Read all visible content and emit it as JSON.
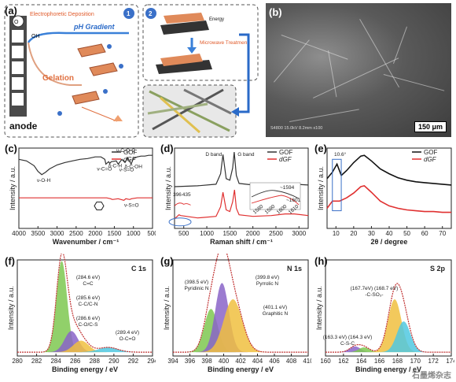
{
  "panel_labels": {
    "a": "(a)",
    "b": "(b)",
    "c": "(c)",
    "d": "(d)",
    "e": "(e)",
    "f": "(f)",
    "g": "(g)",
    "h": "(h)"
  },
  "panel_a": {
    "anode": "anode",
    "step1": "Electrophoretic Deposition",
    "step1_num": "1",
    "step2_num": "2",
    "oh": "OH",
    "o2": "O",
    "ph_gradient": "pH Gradient",
    "gelation": "Gelation",
    "energy": "Energy",
    "microwave": "Microwave Treatment"
  },
  "panel_b": {
    "scale_bar": "150 μm",
    "info": "S4800 15.0kV 8.2mm x100"
  },
  "watermark": "石墨烯杂志",
  "chart_data": [
    {
      "panel": "c",
      "type": "line",
      "xlabel": "Wavenumber / cm⁻¹",
      "ylabel": "Intensity / a.u.",
      "xlim": [
        4000,
        500
      ],
      "xticks": [
        4000,
        3500,
        3000,
        2500,
        2000,
        1500,
        1000,
        500
      ],
      "series": [
        {
          "name": "GOF",
          "color": "#333333",
          "x": [
            4000,
            3800,
            3600,
            3500,
            3400,
            3300,
            3200,
            3000,
            2800,
            2600,
            2400,
            2200,
            2000,
            1850,
            1750,
            1720,
            1650,
            1620,
            1580,
            1450,
            1400,
            1300,
            1220,
            1150,
            1060,
            1000,
            900,
            800,
            700,
            600,
            500
          ],
          "y": [
            0.86,
            0.84,
            0.78,
            0.71,
            0.67,
            0.7,
            0.74,
            0.79,
            0.82,
            0.84,
            0.86,
            0.87,
            0.89,
            0.89,
            0.86,
            0.8,
            0.83,
            0.81,
            0.83,
            0.84,
            0.8,
            0.86,
            0.82,
            0.88,
            0.8,
            0.87,
            0.89,
            0.9,
            0.9,
            0.91,
            0.91
          ]
        },
        {
          "name": "dGF",
          "color": "#e03030",
          "x": [
            4000,
            3000,
            2500,
            2000,
            1700,
            1600,
            1550,
            1400,
            1250,
            1200,
            1100,
            1050,
            900,
            700,
            500
          ],
          "y": [
            0.38,
            0.38,
            0.38,
            0.38,
            0.38,
            0.37,
            0.36,
            0.37,
            0.35,
            0.37,
            0.36,
            0.37,
            0.38,
            0.38,
            0.38
          ]
        }
      ],
      "annotations": [
        "ν-O-H",
        "ν-C=O",
        "δ-C-H",
        "ν-C-O-C",
        "ν-S=O",
        "δ-C-OH",
        "ν-S=O"
      ]
    },
    {
      "panel": "d",
      "type": "line",
      "xlabel": "Raman shift / cm⁻¹",
      "ylabel": "Intensity / a.u.",
      "xlim": [
        300,
        3200
      ],
      "xticks": [
        500,
        1000,
        1500,
        2000,
        2500,
        3000
      ],
      "band_labels": [
        "D band",
        "G band"
      ],
      "inset_labels": [
        "~1594",
        "~1601",
        "396",
        "435"
      ],
      "inset_xticks": [
        1580,
        1590,
        1600,
        1610
      ],
      "series": [
        {
          "name": "GOF",
          "color": "#333333",
          "x": [
            300,
            800,
            1200,
            1300,
            1350,
            1420,
            1500,
            1560,
            1594,
            1640,
            1700,
            2000,
            2400,
            2700,
            2900,
            3200
          ],
          "y": [
            0.52,
            0.53,
            0.55,
            0.68,
            0.92,
            0.62,
            0.6,
            0.75,
            0.95,
            0.66,
            0.56,
            0.54,
            0.54,
            0.55,
            0.55,
            0.54
          ]
        },
        {
          "name": "dGF",
          "color": "#e03030",
          "x": [
            300,
            396,
            435,
            800,
            1200,
            1300,
            1350,
            1420,
            1500,
            1560,
            1601,
            1640,
            1700,
            2000,
            2400,
            2700,
            2900,
            3200
          ],
          "y": [
            0.12,
            0.17,
            0.16,
            0.13,
            0.15,
            0.27,
            0.45,
            0.23,
            0.21,
            0.33,
            0.48,
            0.25,
            0.17,
            0.15,
            0.16,
            0.18,
            0.18,
            0.16
          ]
        }
      ]
    },
    {
      "panel": "e",
      "type": "line",
      "xlabel": "2θ / degree",
      "ylabel": "Intensity / a.u.",
      "xlim": [
        5,
        75
      ],
      "xticks": [
        10,
        20,
        30,
        40,
        50,
        60,
        70
      ],
      "marker": "10.6°",
      "series": [
        {
          "name": "GOF",
          "color": "#111111",
          "x": [
            5,
            8,
            10.6,
            13,
            16,
            20,
            24,
            26,
            30,
            35,
            40,
            45,
            50,
            55,
            60,
            65,
            70,
            75
          ],
          "y": [
            0.62,
            0.7,
            0.8,
            0.66,
            0.72,
            0.82,
            0.9,
            0.91,
            0.84,
            0.74,
            0.68,
            0.63,
            0.6,
            0.58,
            0.57,
            0.56,
            0.55,
            0.54
          ]
        },
        {
          "name": "dGF",
          "color": "#e03030",
          "x": [
            5,
            8,
            12,
            16,
            20,
            24,
            26,
            30,
            35,
            40,
            45,
            50,
            55,
            60,
            65,
            70,
            75
          ],
          "y": [
            0.25,
            0.34,
            0.34,
            0.38,
            0.44,
            0.52,
            0.53,
            0.45,
            0.34,
            0.28,
            0.25,
            0.23,
            0.22,
            0.21,
            0.21,
            0.2,
            0.2
          ]
        }
      ]
    },
    {
      "panel": "f",
      "type": "area",
      "title": "C 1s",
      "xlabel": "Binding energy / eV",
      "ylabel": "Intensity / a.u.",
      "xlim": [
        280,
        294
      ],
      "xticks": [
        280,
        282,
        284,
        286,
        288,
        290,
        292,
        294
      ],
      "peaks": [
        {
          "label": "(284.6 eV)\nC=C",
          "center": 284.6,
          "height": 0.95,
          "width": 0.55,
          "color": "#7ec850"
        },
        {
          "label": "(285.6 eV)\nC-C/C-N",
          "center": 285.6,
          "height": 0.22,
          "width": 0.7,
          "color": "#8a64c8"
        },
        {
          "label": "(286.6 eV)\nC-O/C-S",
          "center": 286.6,
          "height": 0.12,
          "width": 0.8,
          "color": "#f0c040"
        },
        {
          "label": "(289.4 eV)\nO-C=O",
          "center": 289.4,
          "height": 0.05,
          "width": 1.0,
          "color": "#50c8e0"
        }
      ]
    },
    {
      "panel": "g",
      "type": "area",
      "title": "N 1s",
      "xlabel": "Binding energy / eV",
      "ylabel": "Intensity / a.u.",
      "xlim": [
        394,
        410
      ],
      "xticks": [
        394,
        396,
        398,
        400,
        402,
        404,
        406,
        408,
        410
      ],
      "peaks": [
        {
          "label": "(398.5 eV)\nPyridinic N",
          "center": 398.5,
          "height": 0.45,
          "width": 0.8,
          "color": "#7ec850"
        },
        {
          "label": "(399.8 eV)\nPyrrolic N",
          "center": 399.8,
          "height": 0.72,
          "width": 0.8,
          "color": "#8a64c8"
        },
        {
          "label": "(401.1 eV)\nGraphitic N",
          "center": 401.1,
          "height": 0.55,
          "width": 1.1,
          "color": "#f0c040"
        }
      ]
    },
    {
      "panel": "h",
      "type": "area",
      "title": "S 2p",
      "xlabel": "Binding energy / eV",
      "ylabel": "Intensity / a.u.",
      "xlim": [
        160,
        174
      ],
      "xticks": [
        160,
        162,
        164,
        166,
        168,
        170,
        172,
        174
      ],
      "peaks": [
        {
          "label": "(163.3 eV) (164.3 eV)\nC-S-C",
          "center": 163.3,
          "height": 0.06,
          "width": 0.6,
          "color": "#8a64c8"
        },
        {
          "label": "",
          "center": 164.3,
          "height": 0.05,
          "width": 0.6,
          "color": "#7ec850"
        },
        {
          "label": "(167.7eV) (168.7 eV)\n-C-SO₃-",
          "center": 167.7,
          "height": 0.55,
          "width": 0.75,
          "color": "#f0c040"
        },
        {
          "label": "",
          "center": 168.7,
          "height": 0.32,
          "width": 0.75,
          "color": "#50c8e0"
        }
      ]
    }
  ]
}
